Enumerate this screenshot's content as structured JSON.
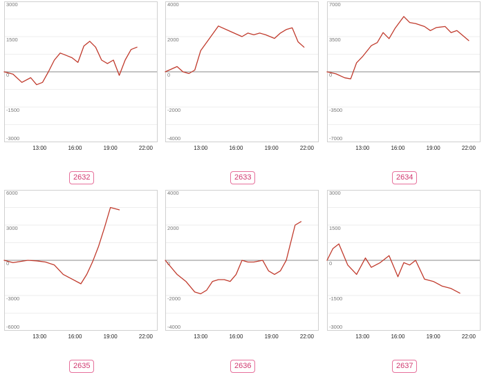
{
  "colors": {
    "line": "#c0392b",
    "frame": "#cfcfcf",
    "grid": "#eeeeee",
    "zero": "#8a8a8a",
    "tick": "#777777",
    "badge_border": "#e66f9a",
    "badge_text": "#d0386f"
  },
  "charts": [
    {
      "code": "2632",
      "chart_data": {
        "type": "line",
        "x_ticks": [
          "13:00",
          "16:00",
          "19:00",
          "22:00"
        ],
        "ylim": [
          -3000,
          3000
        ],
        "y_ticks": [
          3000,
          1500,
          0,
          -1500,
          -3000
        ],
        "grid": true,
        "x": [
          10,
          10.75,
          11.5,
          12.25,
          12.75,
          13.25,
          13.75,
          14.25,
          14.75,
          15.25,
          15.75,
          16.25,
          16.75,
          17.25,
          17.75,
          18.25,
          18.75,
          19.25,
          19.75,
          20.25,
          20.75,
          21.25
        ],
        "y": [
          0,
          -100,
          -450,
          -250,
          -550,
          -450,
          0,
          500,
          800,
          700,
          600,
          400,
          1100,
          1300,
          1050,
          500,
          350,
          500,
          -150,
          500,
          950,
          1050
        ]
      }
    },
    {
      "code": "2633",
      "chart_data": {
        "type": "line",
        "x_ticks": [
          "13:00",
          "16:00",
          "19:00",
          "22:00"
        ],
        "ylim": [
          -4000,
          4000
        ],
        "y_ticks": [
          4000,
          2000,
          0,
          -2000,
          -4000
        ],
        "grid": true,
        "x": [
          10,
          11,
          11.5,
          12,
          12.5,
          13,
          13.75,
          14.5,
          15.5,
          16.5,
          17,
          17.5,
          18,
          18.5,
          19.25,
          19.75,
          20.25,
          20.75,
          21.25,
          21.75
        ],
        "y": [
          0,
          300,
          0,
          -100,
          100,
          1200,
          1900,
          2600,
          2300,
          2000,
          2200,
          2100,
          2200,
          2100,
          1900,
          2200,
          2400,
          2500,
          1700,
          1400
        ]
      }
    },
    {
      "code": "2634",
      "chart_data": {
        "type": "line",
        "x_ticks": [
          "13:00",
          "16:00",
          "19:00",
          "22:00"
        ],
        "ylim": [
          -7000,
          7000
        ],
        "y_ticks": [
          7000,
          3500,
          0,
          -3500,
          -7000
        ],
        "grid": true,
        "x": [
          10,
          10.75,
          11.5,
          12,
          12.5,
          13,
          13.75,
          14.25,
          14.75,
          15.25,
          15.75,
          16.5,
          17,
          17.5,
          18.25,
          18.75,
          19.25,
          20,
          20.5,
          21,
          21.5,
          22
        ],
        "y": [
          0,
          -200,
          -600,
          -700,
          900,
          1500,
          2600,
          2900,
          3900,
          3300,
          4300,
          5500,
          4900,
          4800,
          4500,
          4100,
          4400,
          4500,
          3900,
          4100,
          3600,
          3100
        ]
      }
    },
    {
      "code": "2635",
      "chart_data": {
        "type": "line",
        "x_ticks": [
          "13:00",
          "16:00",
          "19:00",
          "22:00"
        ],
        "ylim": [
          -6000,
          6000
        ],
        "y_ticks": [
          6000,
          3000,
          0,
          -3000,
          -6000
        ],
        "grid": true,
        "x": [
          10,
          10.75,
          12,
          12.75,
          13.5,
          14.25,
          15,
          15.75,
          16.5,
          17,
          17.5,
          18,
          18.5,
          19,
          19.75
        ],
        "y": [
          0,
          -200,
          0,
          -50,
          -150,
          -400,
          -1200,
          -1600,
          -2000,
          -1200,
          -100,
          1200,
          2800,
          4500,
          4300
        ]
      }
    },
    {
      "code": "2636",
      "chart_data": {
        "type": "line",
        "x_ticks": [
          "13:00",
          "16:00",
          "19:00",
          "22:00"
        ],
        "ylim": [
          -4000,
          4000
        ],
        "y_ticks": [
          4000,
          2000,
          0,
          -2000,
          -4000
        ],
        "grid": true,
        "x": [
          10,
          11,
          11.75,
          12.5,
          13,
          13.5,
          14,
          14.5,
          15,
          15.5,
          16,
          16.5,
          17,
          17.5,
          18.25,
          18.75,
          19.25,
          19.75,
          20.25,
          21,
          21.5
        ],
        "y": [
          0,
          -800,
          -1200,
          -1800,
          -1900,
          -1700,
          -1200,
          -1100,
          -1100,
          -1200,
          -800,
          0,
          -100,
          -100,
          0,
          -600,
          -800,
          -600,
          0,
          2000,
          2200
        ]
      }
    },
    {
      "code": "2637",
      "chart_data": {
        "type": "line",
        "x_ticks": [
          "13:00",
          "16:00",
          "19:00",
          "22:00"
        ],
        "ylim": [
          -3000,
          3000
        ],
        "y_ticks": [
          3000,
          1500,
          0,
          -1500,
          -3000
        ],
        "grid": true,
        "x": [
          10,
          10.5,
          11,
          11.75,
          12.5,
          13.25,
          13.75,
          14.5,
          15.25,
          16,
          16.5,
          17,
          17.5,
          18.25,
          19,
          19.75,
          20.5,
          21.25
        ],
        "y": [
          0,
          500,
          700,
          -200,
          -600,
          100,
          -300,
          -100,
          200,
          -700,
          -100,
          -200,
          0,
          -800,
          -900,
          -1100,
          -1200,
          -1400
        ]
      }
    }
  ]
}
